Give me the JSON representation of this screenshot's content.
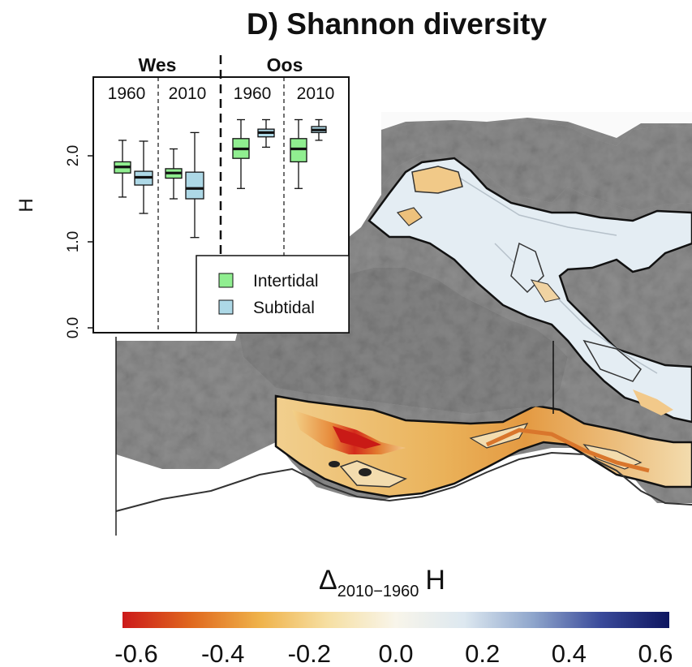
{
  "title": "D) Shannon diversity",
  "chart_data": [
    {
      "type": "boxplot",
      "ylabel": "H",
      "ylim": [
        -0.1,
        2.6
      ],
      "yticks": [
        "0.0",
        "1.0",
        "2.0"
      ],
      "groups": [
        {
          "name": "Wes",
          "periods": [
            {
              "year": "1960",
              "boxes": [
                {
                  "series": "Intertidal",
                  "min": 1.52,
                  "q1": 1.8,
                  "median": 1.87,
                  "q3": 1.93,
                  "max": 2.18
                },
                {
                  "series": "Subtidal",
                  "min": 1.33,
                  "q1": 1.66,
                  "median": 1.75,
                  "q3": 1.82,
                  "max": 2.17
                }
              ]
            },
            {
              "year": "2010",
              "boxes": [
                {
                  "series": "Intertidal",
                  "min": 1.5,
                  "q1": 1.74,
                  "median": 1.8,
                  "q3": 1.85,
                  "max": 2.08
                },
                {
                  "series": "Subtidal",
                  "min": 1.05,
                  "q1": 1.5,
                  "median": 1.62,
                  "q3": 1.81,
                  "max": 2.27
                }
              ]
            }
          ]
        },
        {
          "name": "Oos",
          "periods": [
            {
              "year": "1960",
              "boxes": [
                {
                  "series": "Intertidal",
                  "min": 1.62,
                  "q1": 1.97,
                  "median": 2.08,
                  "q3": 2.2,
                  "max": 2.42
                },
                {
                  "series": "Subtidal",
                  "min": 2.1,
                  "q1": 2.22,
                  "median": 2.27,
                  "q3": 2.31,
                  "max": 2.42
                }
              ]
            },
            {
              "year": "2010",
              "boxes": [
                {
                  "series": "Intertidal",
                  "min": 1.62,
                  "q1": 1.93,
                  "median": 2.08,
                  "q3": 2.2,
                  "max": 2.42
                },
                {
                  "series": "Subtidal",
                  "min": 2.18,
                  "q1": 2.27,
                  "median": 2.3,
                  "q3": 2.34,
                  "max": 2.42
                }
              ]
            }
          ]
        }
      ],
      "legend": {
        "position": "bottom-right",
        "items": [
          {
            "label": "Intertidal",
            "color": "#90ee90"
          },
          {
            "label": "Subtidal",
            "color": "#add8e6"
          }
        ]
      }
    },
    {
      "type": "heatmap",
      "colorbar": {
        "title_main": "Δ",
        "title_sub": "2010−1960",
        "title_suffix": "H",
        "range": [
          -0.6,
          0.6
        ],
        "ticks": [
          "-0.6",
          "-0.4",
          "-0.2",
          "0.0",
          "0.2",
          "0.4",
          "0.6"
        ],
        "colors": [
          "#cc1a1a",
          "#e0681e",
          "#efb24a",
          "#f6dfa2",
          "#f8f5ea",
          "#dde8f0",
          "#8fa6cc",
          "#3a4a9a",
          "#0e1660"
        ]
      }
    }
  ],
  "colors": {
    "land": "#8e8e8e",
    "water": "#e4edf3",
    "channel_line": "#b6c1ca"
  }
}
